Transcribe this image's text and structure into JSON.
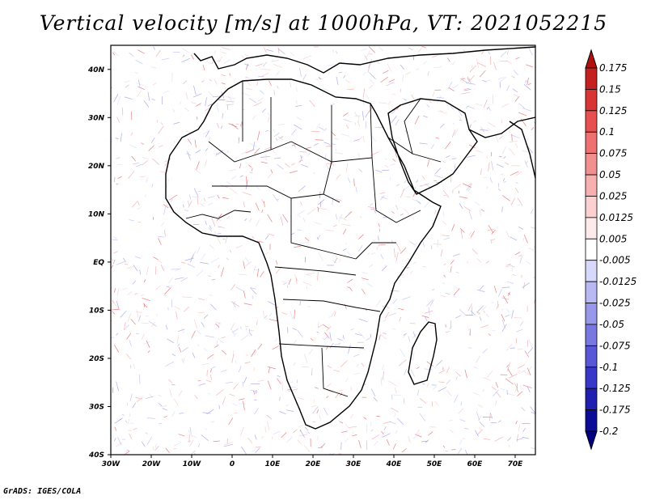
{
  "title": "Vertical velocity [m/s] at 1000hPa, VT: 2021052215",
  "credit": "GrADS: IGES/COLA",
  "map": {
    "lat_labels": [
      "40N",
      "30N",
      "20N",
      "10N",
      "EQ",
      "10S",
      "20S",
      "30S",
      "40S"
    ],
    "lon_labels": [
      "30W",
      "20W",
      "10W",
      "0",
      "10E",
      "20E",
      "30E",
      "40E",
      "50E",
      "60E",
      "70E"
    ],
    "extent": {
      "lon_min": -30,
      "lon_max": 75,
      "lat_min": -40,
      "lat_max": 45
    }
  },
  "colorbar": {
    "labels": [
      "0.175",
      "0.15",
      "0.125",
      "0.1",
      "0.075",
      "0.05",
      "0.025",
      "0.0125",
      "0.005",
      "-0.005",
      "-0.0125",
      "-0.025",
      "-0.05",
      "-0.075",
      "-0.1",
      "-0.125",
      "-0.175",
      "-0.2"
    ],
    "colors": [
      "#b01010",
      "#c42020",
      "#d83535",
      "#e85050",
      "#ee7070",
      "#f29090",
      "#f6b0b0",
      "#fad0d0",
      "#fdeaea",
      "#ffffff",
      "#d8d8fa",
      "#b8b8f2",
      "#9898ea",
      "#7878e0",
      "#5858d6",
      "#3838c8",
      "#2020b0",
      "#0c0c98",
      "#000080"
    ]
  }
}
